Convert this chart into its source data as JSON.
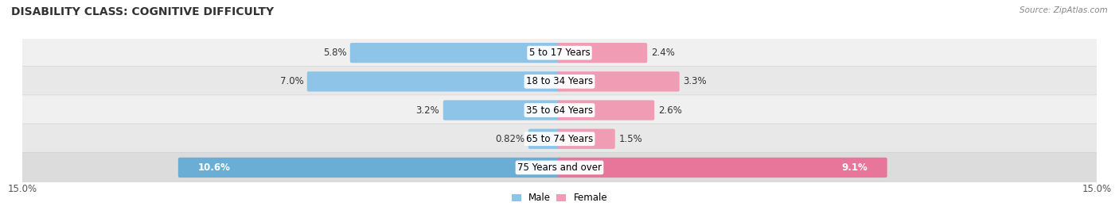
{
  "title": "DISABILITY CLASS: COGNITIVE DIFFICULTY",
  "source": "Source: ZipAtlas.com",
  "categories": [
    "5 to 17 Years",
    "18 to 34 Years",
    "35 to 64 Years",
    "65 to 74 Years",
    "75 Years and over"
  ],
  "male_values": [
    5.8,
    7.0,
    3.2,
    0.82,
    10.6
  ],
  "female_values": [
    2.4,
    3.3,
    2.6,
    1.5,
    9.1
  ],
  "max_val": 15.0,
  "male_color": "#8DC4E8",
  "female_color": "#F09CB5",
  "male_color_dark": "#6AADD5",
  "female_color_dark": "#E8759A",
  "male_label": "Male",
  "female_label": "Female",
  "row_colors": [
    "#F0F0F0",
    "#E8E8E8",
    "#F0F0F0",
    "#E8E8E8",
    "#DCDCDC"
  ],
  "title_fontsize": 10,
  "label_fontsize": 8.5,
  "axis_label_fontsize": 8.5,
  "bar_height": 0.6
}
